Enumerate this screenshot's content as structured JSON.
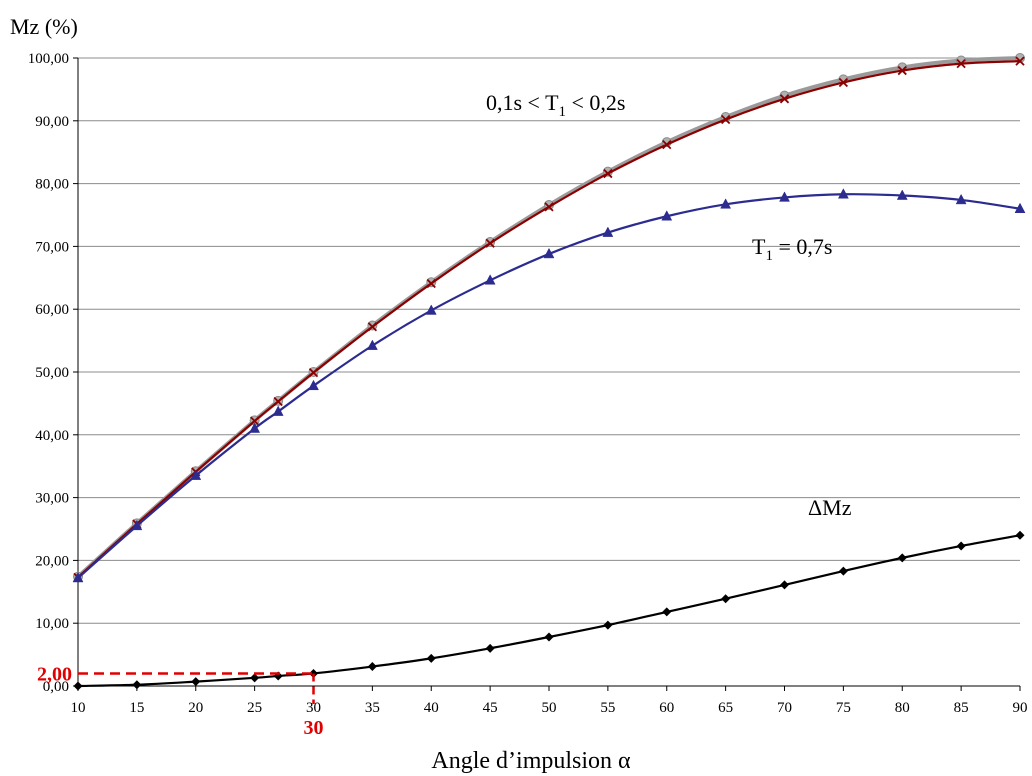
{
  "chart_data": {
    "type": "line",
    "y_title": "Mz (%)",
    "xlabel": "Angle d’impulsion α",
    "x": [
      10,
      15,
      20,
      25,
      27,
      30,
      35,
      40,
      45,
      50,
      55,
      60,
      65,
      70,
      75,
      80,
      85,
      90
    ],
    "xticks": [
      10,
      15,
      20,
      25,
      30,
      35,
      40,
      45,
      50,
      55,
      60,
      65,
      70,
      75,
      80,
      85,
      90
    ],
    "yticks": [
      "0,00",
      "10,00",
      "20,00",
      "30,00",
      "40,00",
      "50,00",
      "60,00",
      "70,00",
      "80,00",
      "90,00",
      "100,00"
    ],
    "ylim": [
      0,
      100
    ],
    "xlim": [
      10,
      90
    ],
    "grid": "horizontal",
    "series": [
      {
        "marker": "circle",
        "color": "#9a9a9a",
        "values": [
          17.4,
          25.9,
          34.2,
          42.3,
          45.4,
          50.0,
          57.4,
          64.3,
          70.7,
          76.6,
          81.9,
          86.6,
          90.6,
          94.0,
          96.6,
          98.5,
          99.6,
          100.0
        ]
      },
      {
        "marker": "x",
        "color": "#8b0000",
        "values": [
          17.3,
          25.8,
          34.1,
          42.2,
          45.3,
          49.9,
          57.2,
          64.1,
          70.5,
          76.3,
          81.6,
          86.2,
          90.2,
          93.5,
          96.1,
          98.0,
          99.1,
          99.5
        ]
      },
      {
        "marker": "triangle",
        "color": "#2b2b90",
        "values": [
          17.2,
          25.5,
          33.5,
          41.0,
          43.7,
          47.8,
          54.2,
          59.8,
          64.6,
          68.8,
          72.2,
          74.8,
          76.7,
          77.8,
          78.3,
          78.1,
          77.4,
          76.0
        ]
      },
      {
        "marker": "diamond",
        "color": "#000000",
        "values": [
          0.0,
          0.2,
          0.7,
          1.3,
          1.6,
          2.0,
          3.1,
          4.4,
          6.0,
          7.8,
          9.7,
          11.8,
          13.9,
          16.1,
          18.3,
          20.4,
          22.3,
          24.0
        ]
      }
    ],
    "annotations": {
      "curve_short_prefix": "0,1s < T",
      "curve_short_sub": "1",
      "curve_short_suffix": " < 0,2s",
      "curve_long_prefix": "T",
      "curve_long_sub": "1",
      "curve_long_suffix": " = 0,7s",
      "delta_label": "ΔMz"
    },
    "highlight": {
      "x": 30,
      "y": 2.0,
      "x_label": "30",
      "y_label": "2,00",
      "color": "#e00000"
    }
  }
}
